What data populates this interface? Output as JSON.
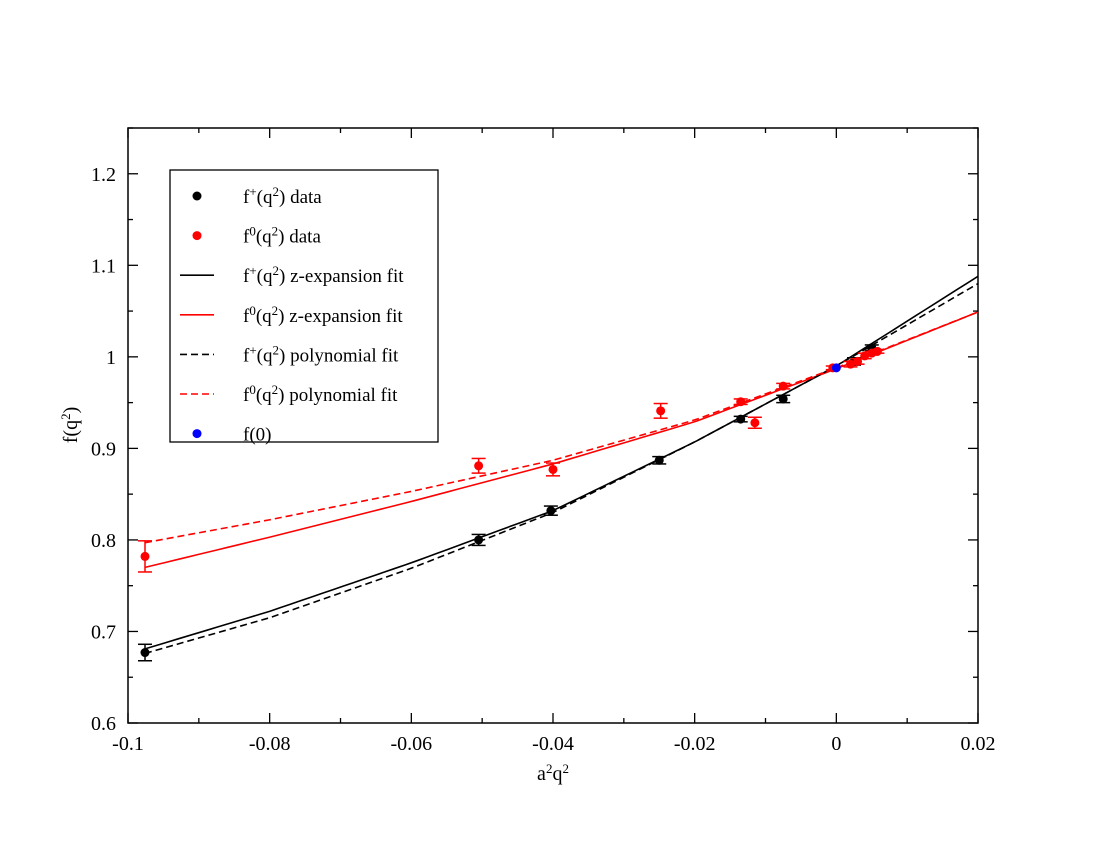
{
  "chart_data": {
    "type": "scatter",
    "title": "",
    "xlabel": "a2q2",
    "ylabel": "f(q2)",
    "xlim": [
      -0.1,
      0.02
    ],
    "ylim": [
      0.6,
      1.25
    ],
    "grid": false,
    "legend_position": "top-left",
    "x_ticks": [
      -0.1,
      -0.08,
      -0.06,
      -0.04,
      -0.02,
      0,
      0.02
    ],
    "x_tick_labels": [
      "-0.1",
      "-0.08",
      "-0.06",
      "-0.04",
      "-0.02",
      "0",
      "0.02"
    ],
    "y_ticks": [
      0.6,
      0.7,
      0.8,
      0.9,
      1.0,
      1.1,
      1.2
    ],
    "y_tick_labels": [
      "0.6",
      "0.7",
      "0.8",
      "0.9",
      "1",
      "1.1",
      "1.2"
    ],
    "series": [
      {
        "name": "f+(q2) data",
        "legend": {
          "fn": "f",
          "sup": "+",
          "pre": "(q",
          "sup2": "2",
          "post": ") data"
        },
        "kind": "points",
        "color": "#000000",
        "points": [
          {
            "x": -0.0976,
            "y": 0.677,
            "err": 0.009
          },
          {
            "x": -0.0505,
            "y": 0.8,
            "err": 0.006
          },
          {
            "x": -0.0403,
            "y": 0.832,
            "err": 0.005
          },
          {
            "x": -0.025,
            "y": 0.887,
            "err": 0.004
          },
          {
            "x": -0.0135,
            "y": 0.932,
            "err": 0.003
          },
          {
            "x": -0.0075,
            "y": 0.954,
            "err": 0.004
          },
          {
            "x": 0.0025,
            "y": 0.995,
            "err": 0.004
          },
          {
            "x": 0.005,
            "y": 1.01,
            "err": 0.003
          }
        ]
      },
      {
        "name": "f0(q2) data",
        "legend": {
          "fn": "f",
          "sup": "0",
          "pre": "(q",
          "sup2": "2",
          "post": ") data"
        },
        "kind": "points",
        "color": "#ff0000",
        "points": [
          {
            "x": -0.0976,
            "y": 0.782,
            "err": 0.017
          },
          {
            "x": -0.0505,
            "y": 0.881,
            "err": 0.008
          },
          {
            "x": -0.04,
            "y": 0.877,
            "err": 0.007
          },
          {
            "x": -0.0248,
            "y": 0.941,
            "err": 0.008
          },
          {
            "x": -0.0135,
            "y": 0.951,
            "err": 0.003
          },
          {
            "x": -0.0115,
            "y": 0.928,
            "err": 0.006
          },
          {
            "x": -0.0075,
            "y": 0.968,
            "err": 0.003
          },
          {
            "x": -0.0005,
            "y": 0.988,
            "err": 0.002
          },
          {
            "x": 0.002,
            "y": 0.992,
            "err": 0.003
          },
          {
            "x": 0.003,
            "y": 0.995,
            "err": 0.003
          },
          {
            "x": 0.004,
            "y": 1.001,
            "err": 0.003
          },
          {
            "x": 0.005,
            "y": 1.004,
            "err": 0.002
          },
          {
            "x": 0.0058,
            "y": 1.006,
            "err": 0.002
          }
        ]
      },
      {
        "name": "f+(q2) z-expansion fit",
        "legend": {
          "fn": "f",
          "sup": "+",
          "pre": "(q",
          "sup2": "2",
          "post": ") z-expansion fit"
        },
        "kind": "line",
        "dash": "solid",
        "color": "#000000",
        "x": [
          -0.0976,
          -0.08,
          -0.06,
          -0.04,
          -0.02,
          0,
          0.02
        ],
        "y": [
          0.681,
          0.722,
          0.775,
          0.832,
          0.907,
          0.99,
          1.088
        ]
      },
      {
        "name": "f0(q2) z-expansion fit",
        "legend": {
          "fn": "f",
          "sup": "0",
          "pre": "(q",
          "sup2": "2",
          "post": ") z-expansion fit"
        },
        "kind": "line",
        "dash": "solid",
        "color": "#ff0000",
        "x": [
          -0.0976,
          -0.08,
          -0.06,
          -0.04,
          -0.02,
          0,
          0.02
        ],
        "y": [
          0.77,
          0.803,
          0.842,
          0.883,
          0.929,
          0.987,
          1.049
        ]
      },
      {
        "name": "f+(q2) polynomial fit",
        "legend": {
          "fn": "f",
          "sup": "+",
          "pre": "(q",
          "sup2": "2",
          "post": ") polynomial fit"
        },
        "kind": "line",
        "dash": "dashed",
        "color": "#000000",
        "x": [
          -0.0976,
          -0.08,
          -0.06,
          -0.04,
          -0.02,
          0,
          0.02
        ],
        "y": [
          0.676,
          0.715,
          0.769,
          0.83,
          0.907,
          0.99,
          1.08
        ]
      },
      {
        "name": "f0(q2) polynomial fit",
        "legend": {
          "fn": "f",
          "sup": "0",
          "pre": "(q",
          "sup2": "2",
          "post": ") polynomial fit"
        },
        "kind": "line",
        "dash": "dashed",
        "color": "#ff0000",
        "x": [
          -0.0976,
          -0.08,
          -0.06,
          -0.04,
          -0.02,
          0,
          0.02
        ],
        "y": [
          0.797,
          0.822,
          0.853,
          0.887,
          0.931,
          0.988,
          1.049
        ]
      },
      {
        "name": "f(0)",
        "legend": {
          "fn": "f(0)",
          "sup": "",
          "pre": "",
          "sup2": "",
          "post": ""
        },
        "kind": "points",
        "color": "#0000ff",
        "points": [
          {
            "x": 0.0,
            "y": 0.988,
            "err": 0.0
          }
        ]
      }
    ]
  }
}
